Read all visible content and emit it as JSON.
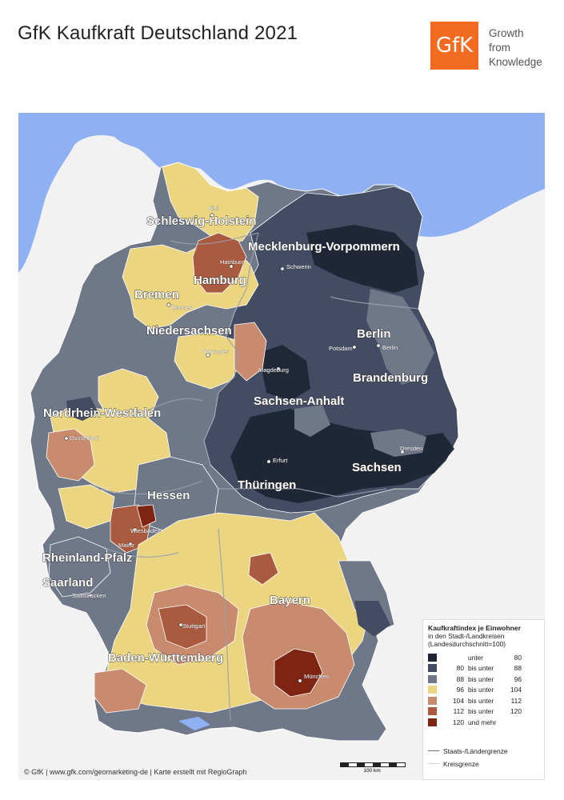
{
  "title": "GfK Kaufkraft Deutschland 2021",
  "logo": {
    "text": "GfK",
    "tagline": [
      "Growth",
      "from",
      "Knowledge"
    ]
  },
  "colors": {
    "water": "#8fb0f3",
    "land_outside": "#f2f2f2",
    "c1": "#1d2433",
    "c2": "#434c62",
    "c3": "#6f7889",
    "c4": "#ecd581",
    "c5": "#c98b6e",
    "c6": "#aa5a3f",
    "c7": "#7e2413"
  },
  "states": [
    {
      "name": "Schleswig-Holstein"
    },
    {
      "name": "Mecklenburg-Vorpommern"
    },
    {
      "name": "Hamburg"
    },
    {
      "name": "Bremen"
    },
    {
      "name": "Niedersachsen"
    },
    {
      "name": "Berlin"
    },
    {
      "name": "Brandenburg"
    },
    {
      "name": "Sachsen-Anhalt"
    },
    {
      "name": "Nordrhein-Westfalen"
    },
    {
      "name": "Sachsen"
    },
    {
      "name": "Thüringen"
    },
    {
      "name": "Hessen"
    },
    {
      "name": "Rheinland-Pfalz"
    },
    {
      "name": "Saarland"
    },
    {
      "name": "Bayern"
    },
    {
      "name": "Baden-Württemberg"
    }
  ],
  "cities": [
    {
      "name": "Kiel"
    },
    {
      "name": "Hamburg"
    },
    {
      "name": "Schwerin"
    },
    {
      "name": "Bremen"
    },
    {
      "name": "Hannover"
    },
    {
      "name": "Potsdam"
    },
    {
      "name": "Berlin"
    },
    {
      "name": "Magdeburg"
    },
    {
      "name": "Düsseldorf"
    },
    {
      "name": "Erfurt"
    },
    {
      "name": "Dresden"
    },
    {
      "name": "Wiesbaden"
    },
    {
      "name": "Mainz"
    },
    {
      "name": "Saarbrücken"
    },
    {
      "name": "Stuttgart"
    },
    {
      "name": "München"
    }
  ],
  "legend": {
    "title": "Kaufkraftindex je Einwohner",
    "subtitle1": "in den Stadt-/Landkreisen",
    "subtitle2": "(Landesdurchschnitt=100)",
    "classes": [
      {
        "lo": "",
        "mid": "unter",
        "hi": "80",
        "color": "#1d2433"
      },
      {
        "lo": "80",
        "mid": "bis unter",
        "hi": "88",
        "color": "#434c62"
      },
      {
        "lo": "88",
        "mid": "bis unter",
        "hi": "96",
        "color": "#6f7889"
      },
      {
        "lo": "96",
        "mid": "bis unter",
        "hi": "104",
        "color": "#ecd581"
      },
      {
        "lo": "104",
        "mid": "bis unter",
        "hi": "112",
        "color": "#c98b6e"
      },
      {
        "lo": "112",
        "mid": "bis unter",
        "hi": "120",
        "color": "#aa5a3f"
      },
      {
        "lo": "120",
        "mid": "und mehr",
        "hi": "",
        "color": "#7e2413"
      }
    ],
    "line_state": "Staats-/Ländergrenze",
    "line_district": "Kreisgrenze"
  },
  "scale_label": "100 km",
  "footer": "© GfK | www.gfk.com/geomarketing-de | Karte erstellt mit RegioGraph"
}
